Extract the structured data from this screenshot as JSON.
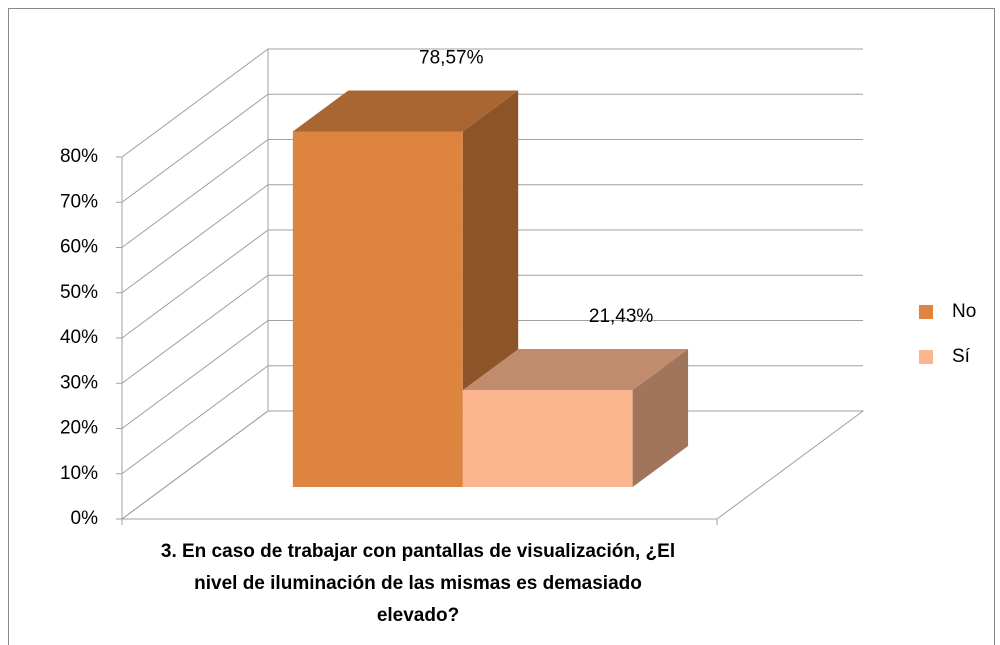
{
  "chart_data": {
    "type": "bar3d",
    "categories": [
      "3. En caso de trabajar con pantallas de visualización, ¿El nivel de iluminación de las mismas es demasiado elevado?"
    ],
    "series": [
      {
        "name": "No",
        "color": "#dd8441",
        "values": [
          78.57
        ],
        "value_labels": [
          "78,57%"
        ]
      },
      {
        "name": "Sí",
        "color": "#fbb58f",
        "values": [
          21.43
        ],
        "value_labels": [
          "21,43%"
        ]
      }
    ],
    "ylim": [
      0,
      80
    ],
    "yticks": [
      {
        "value": 0,
        "label": "0%"
      },
      {
        "value": 10,
        "label": "10%"
      },
      {
        "value": 20,
        "label": "20%"
      },
      {
        "value": 30,
        "label": "30%"
      },
      {
        "value": 40,
        "label": "40%"
      },
      {
        "value": 50,
        "label": "50%"
      },
      {
        "value": 60,
        "label": "60%"
      },
      {
        "value": 70,
        "label": "70%"
      },
      {
        "value": 80,
        "label": "80%"
      }
    ],
    "grid": true,
    "legend": "right"
  }
}
